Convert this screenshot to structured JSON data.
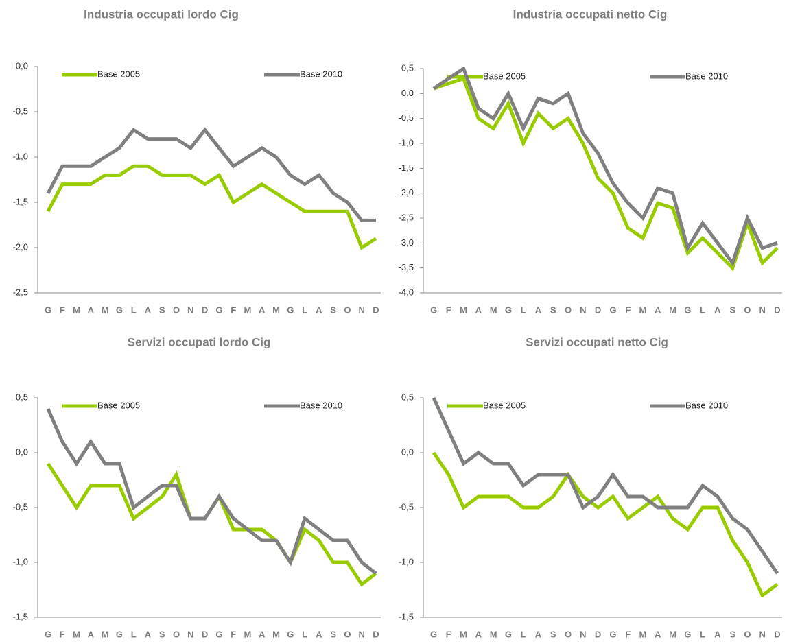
{
  "chart_data": [
    {
      "type": "line",
      "title": "Industria occupati  lordo Cig",
      "categories": [
        "G",
        "F",
        "M",
        "A",
        "M",
        "G",
        "L",
        "A",
        "S",
        "O",
        "N",
        "D",
        "G",
        "F",
        "M",
        "A",
        "M",
        "G",
        "L",
        "A",
        "S",
        "O",
        "N",
        "D"
      ],
      "series": [
        {
          "name": "Base 2005",
          "color": "#99cc00",
          "values": [
            -1.6,
            -1.3,
            -1.3,
            -1.3,
            -1.2,
            -1.2,
            -1.1,
            -1.1,
            -1.2,
            -1.2,
            -1.2,
            -1.3,
            -1.2,
            -1.5,
            -1.4,
            -1.3,
            -1.4,
            -1.5,
            -1.6,
            -1.6,
            -1.6,
            -1.6,
            -2.0,
            -1.9
          ]
        },
        {
          "name": "Base 2010",
          "color": "#808080",
          "values": [
            -1.4,
            -1.1,
            -1.1,
            -1.1,
            -1.0,
            -0.9,
            -0.7,
            -0.8,
            -0.8,
            -0.8,
            -0.9,
            -0.7,
            -0.9,
            -1.1,
            -1.0,
            -0.9,
            -1.0,
            -1.2,
            -1.3,
            -1.2,
            -1.4,
            -1.5,
            -1.7,
            -1.7
          ]
        }
      ],
      "ylim": [
        -2.5,
        0
      ],
      "yticks": [
        {
          "value": 0,
          "label": "0,0"
        },
        {
          "value": -0.5,
          "label": "-0,5"
        },
        {
          "value": -1,
          "label": "-1,0"
        },
        {
          "value": -1.5,
          "label": "-1,5"
        },
        {
          "value": -2,
          "label": "-2,0"
        },
        {
          "value": -2.5,
          "label": "-2,5"
        }
      ]
    },
    {
      "type": "line",
      "title": "Industria occupati  netto Cig",
      "categories": [
        "G",
        "F",
        "M",
        "A",
        "M",
        "G",
        "L",
        "A",
        "S",
        "O",
        "N",
        "D",
        "G",
        "F",
        "M",
        "A",
        "M",
        "G",
        "L",
        "A",
        "S",
        "O",
        "N",
        "D"
      ],
      "series": [
        {
          "name": "Base 2005",
          "color": "#99cc00",
          "values": [
            0.1,
            0.2,
            0.3,
            -0.5,
            -0.7,
            -0.2,
            -1.0,
            -0.4,
            -0.7,
            -0.5,
            -1.0,
            -1.7,
            -2.0,
            -2.7,
            -2.9,
            -2.2,
            -2.3,
            -3.2,
            -2.9,
            -3.2,
            -3.5,
            -2.6,
            -3.4,
            -3.1
          ]
        },
        {
          "name": "Base 2010",
          "color": "#808080",
          "values": [
            0.1,
            0.3,
            0.5,
            -0.3,
            -0.5,
            0.0,
            -0.7,
            -0.1,
            -0.2,
            0.0,
            -0.8,
            -1.2,
            -1.8,
            -2.2,
            -2.5,
            -1.9,
            -2.0,
            -3.1,
            -2.6,
            -3.0,
            -3.4,
            -2.5,
            -3.1,
            -3.0
          ]
        }
      ],
      "ylim": [
        -4,
        0.5
      ],
      "yticks": [
        {
          "value": 0.5,
          "label": "0,5"
        },
        {
          "value": 0,
          "label": "0,0"
        },
        {
          "value": -0.5,
          "label": "-0,5"
        },
        {
          "value": -1,
          "label": "-1,0"
        },
        {
          "value": -1.5,
          "label": "-1,5"
        },
        {
          "value": -2,
          "label": "-2,0"
        },
        {
          "value": -2.5,
          "label": "-2,5"
        },
        {
          "value": -3,
          "label": "-3,0"
        },
        {
          "value": -3.5,
          "label": "-3,5"
        },
        {
          "value": -4,
          "label": "-4,0"
        }
      ]
    },
    {
      "type": "line",
      "title": "Servizi occupati  lordo Cig",
      "categories": [
        "G",
        "F",
        "M",
        "A",
        "M",
        "G",
        "L",
        "A",
        "S",
        "O",
        "N",
        "D",
        "G",
        "F",
        "M",
        "A",
        "M",
        "G",
        "L",
        "A",
        "S",
        "O",
        "N",
        "D"
      ],
      "series": [
        {
          "name": "Base 2005",
          "color": "#99cc00",
          "values": [
            -0.1,
            -0.3,
            -0.5,
            -0.3,
            -0.3,
            -0.3,
            -0.6,
            -0.5,
            -0.4,
            -0.2,
            -0.6,
            -0.6,
            -0.4,
            -0.7,
            -0.7,
            -0.7,
            -0.8,
            -1.0,
            -0.7,
            -0.8,
            -1.0,
            -1.0,
            -1.2,
            -1.1
          ]
        },
        {
          "name": "Base 2010",
          "color": "#808080",
          "values": [
            0.4,
            0.1,
            -0.1,
            0.1,
            -0.1,
            -0.1,
            -0.5,
            -0.4,
            -0.3,
            -0.3,
            -0.6,
            -0.6,
            -0.4,
            -0.6,
            -0.7,
            -0.8,
            -0.8,
            -1.0,
            -0.6,
            -0.7,
            -0.8,
            -0.8,
            -1.0,
            -1.1
          ]
        }
      ],
      "ylim": [
        -1.5,
        0.5
      ],
      "yticks": [
        {
          "value": 0.5,
          "label": "0,5"
        },
        {
          "value": 0,
          "label": "0,0"
        },
        {
          "value": -0.5,
          "label": "-0,5"
        },
        {
          "value": -1,
          "label": "-1,0"
        },
        {
          "value": -1.5,
          "label": "-1,5"
        }
      ]
    },
    {
      "type": "line",
      "title": "Servizi occupati  netto Cig",
      "categories": [
        "G",
        "F",
        "M",
        "A",
        "M",
        "G",
        "L",
        "A",
        "S",
        "O",
        "N",
        "D",
        "G",
        "F",
        "M",
        "A",
        "M",
        "G",
        "L",
        "A",
        "S",
        "O",
        "N",
        "D"
      ],
      "series": [
        {
          "name": "Base 2005",
          "color": "#99cc00",
          "values": [
            0.0,
            -0.2,
            -0.5,
            -0.4,
            -0.4,
            -0.4,
            -0.5,
            -0.5,
            -0.4,
            -0.2,
            -0.4,
            -0.5,
            -0.4,
            -0.6,
            -0.5,
            -0.4,
            -0.6,
            -0.7,
            -0.5,
            -0.5,
            -0.8,
            -1.0,
            -1.3,
            -1.2
          ]
        },
        {
          "name": "Base 2010",
          "color": "#808080",
          "values": [
            0.5,
            0.2,
            -0.1,
            0.0,
            -0.1,
            -0.1,
            -0.3,
            -0.2,
            -0.2,
            -0.2,
            -0.5,
            -0.4,
            -0.2,
            -0.4,
            -0.4,
            -0.5,
            -0.5,
            -0.5,
            -0.3,
            -0.4,
            -0.6,
            -0.7,
            -0.9,
            -1.1
          ]
        }
      ],
      "ylim": [
        -1.5,
        0.5
      ],
      "yticks": [
        {
          "value": 0.5,
          "label": "0,5"
        },
        {
          "value": 0,
          "label": "0,0"
        },
        {
          "value": -0.5,
          "label": "-0,5"
        },
        {
          "value": -1,
          "label": "-1,0"
        },
        {
          "value": -1.5,
          "label": "-1,5"
        }
      ]
    }
  ]
}
